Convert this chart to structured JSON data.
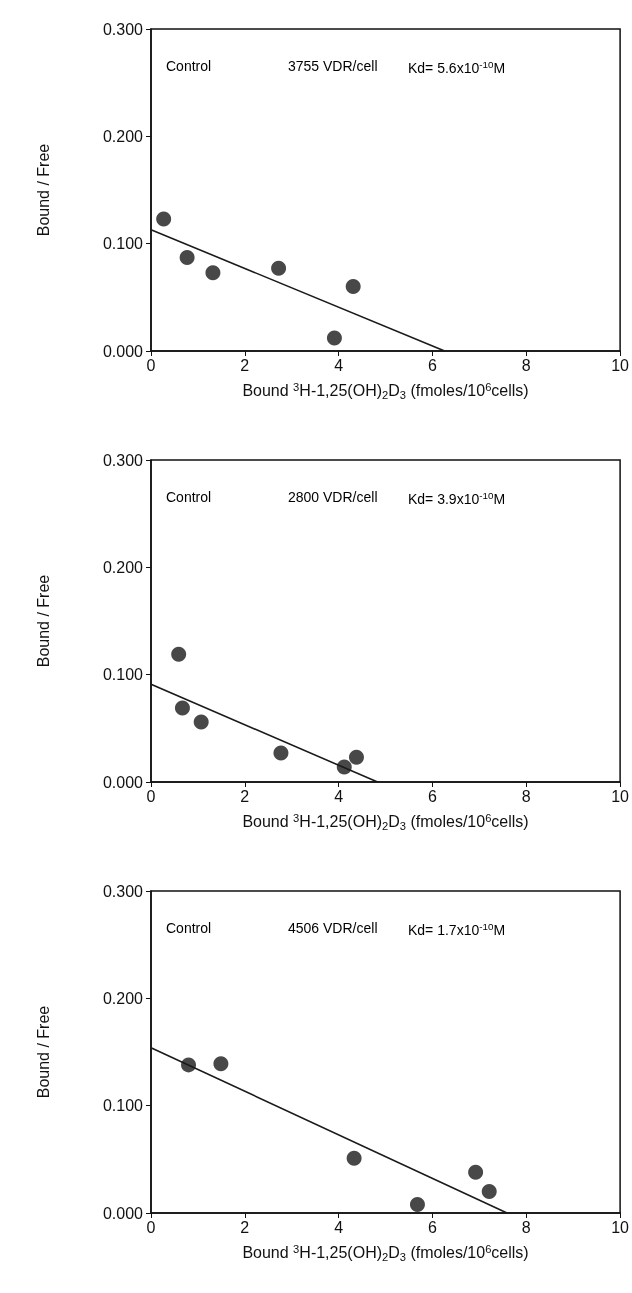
{
  "chart_data": [
    {
      "type": "scatter",
      "xlabel": "Bound $^{3}$H-1,25(OH)$_{2}$D$_{3}$ (fmoles/10$^{6}$cells)",
      "ylabel": "Bound / Free",
      "annotations": [
        "Control",
        "3755 VDR/cell",
        "Kd= 5.6x10$^{-10}$M"
      ],
      "xlim": [
        0,
        10
      ],
      "xticks": [
        0,
        2,
        4,
        6,
        8,
        10
      ],
      "ylim": [
        0,
        0.3
      ],
      "yticks": [
        {
          "value": 0,
          "label": "0.000"
        },
        {
          "value": 0.1,
          "label": "0.100"
        },
        {
          "value": 0.2,
          "label": "0.200"
        },
        {
          "value": 0.3,
          "label": "0.300"
        }
      ],
      "grid": false,
      "series": [
        {
          "marker": "circle",
          "color": "#1a1a1a",
          "x": [
            0.27,
            0.77,
            1.32,
            2.72,
            3.91,
            4.31
          ],
          "values": [
            0.123,
            0.087,
            0.073,
            0.077,
            0.012,
            0.06
          ]
        },
        {
          "type": "line",
          "marker": "none",
          "color": "#1a1a1a",
          "x": [
            0,
            6.26
          ],
          "values": [
            0.113,
            0
          ]
        }
      ]
    },
    {
      "type": "scatter",
      "xlabel": "Bound $^{3}$H-1,25(OH)$_{2}$D$_{3}$ (fmoles/10$^{6}$cells)",
      "ylabel": "Bound / Free",
      "annotations": [
        "Control",
        "2800 VDR/cell",
        "Kd= 3.9x10$^{-10}$M"
      ],
      "xlim": [
        0,
        10
      ],
      "xticks": [
        0,
        2,
        4,
        6,
        8,
        10
      ],
      "ylim": [
        0,
        0.3
      ],
      "yticks": [
        {
          "value": 0,
          "label": "0.000"
        },
        {
          "value": 0.1,
          "label": "0.100"
        },
        {
          "value": 0.2,
          "label": "0.200"
        },
        {
          "value": 0.3,
          "label": "0.300"
        }
      ],
      "grid": false,
      "series": [
        {
          "marker": "circle",
          "color": "#1a1a1a",
          "x": [
            0.59,
            0.67,
            1.07,
            2.77,
            4.12,
            4.38
          ],
          "values": [
            0.119,
            0.069,
            0.056,
            0.027,
            0.014,
            0.023
          ]
        },
        {
          "type": "line",
          "marker": "none",
          "color": "#1a1a1a",
          "x": [
            0,
            4.83
          ],
          "values": [
            0.091,
            0
          ]
        }
      ]
    },
    {
      "type": "scatter",
      "xlabel": "Bound $^{3}$H-1,25(OH)$_{2}$D$_{3}$ (fmoles/10$^{6}$cells)",
      "ylabel": "Bound / Free",
      "annotations": [
        "Control",
        "4506 VDR/cell",
        "Kd= 1.7x10$^{-10}$M"
      ],
      "xlim": [
        0,
        10
      ],
      "xticks": [
        0,
        2,
        4,
        6,
        8,
        10
      ],
      "ylim": [
        0,
        0.3
      ],
      "yticks": [
        {
          "value": 0,
          "label": "0.000"
        },
        {
          "value": 0.1,
          "label": "0.100"
        },
        {
          "value": 0.2,
          "label": "0.200"
        },
        {
          "value": 0.3,
          "label": "0.300"
        }
      ],
      "grid": false,
      "series": [
        {
          "marker": "circle",
          "color": "#1a1a1a",
          "x": [
            0.8,
            1.49,
            4.33,
            5.68,
            6.92,
            7.21
          ],
          "values": [
            0.138,
            0.139,
            0.051,
            0.008,
            0.038,
            0.02
          ]
        },
        {
          "type": "line",
          "marker": "none",
          "color": "#1a1a1a",
          "x": [
            0,
            7.59
          ],
          "values": [
            0.154,
            0
          ]
        }
      ]
    }
  ]
}
